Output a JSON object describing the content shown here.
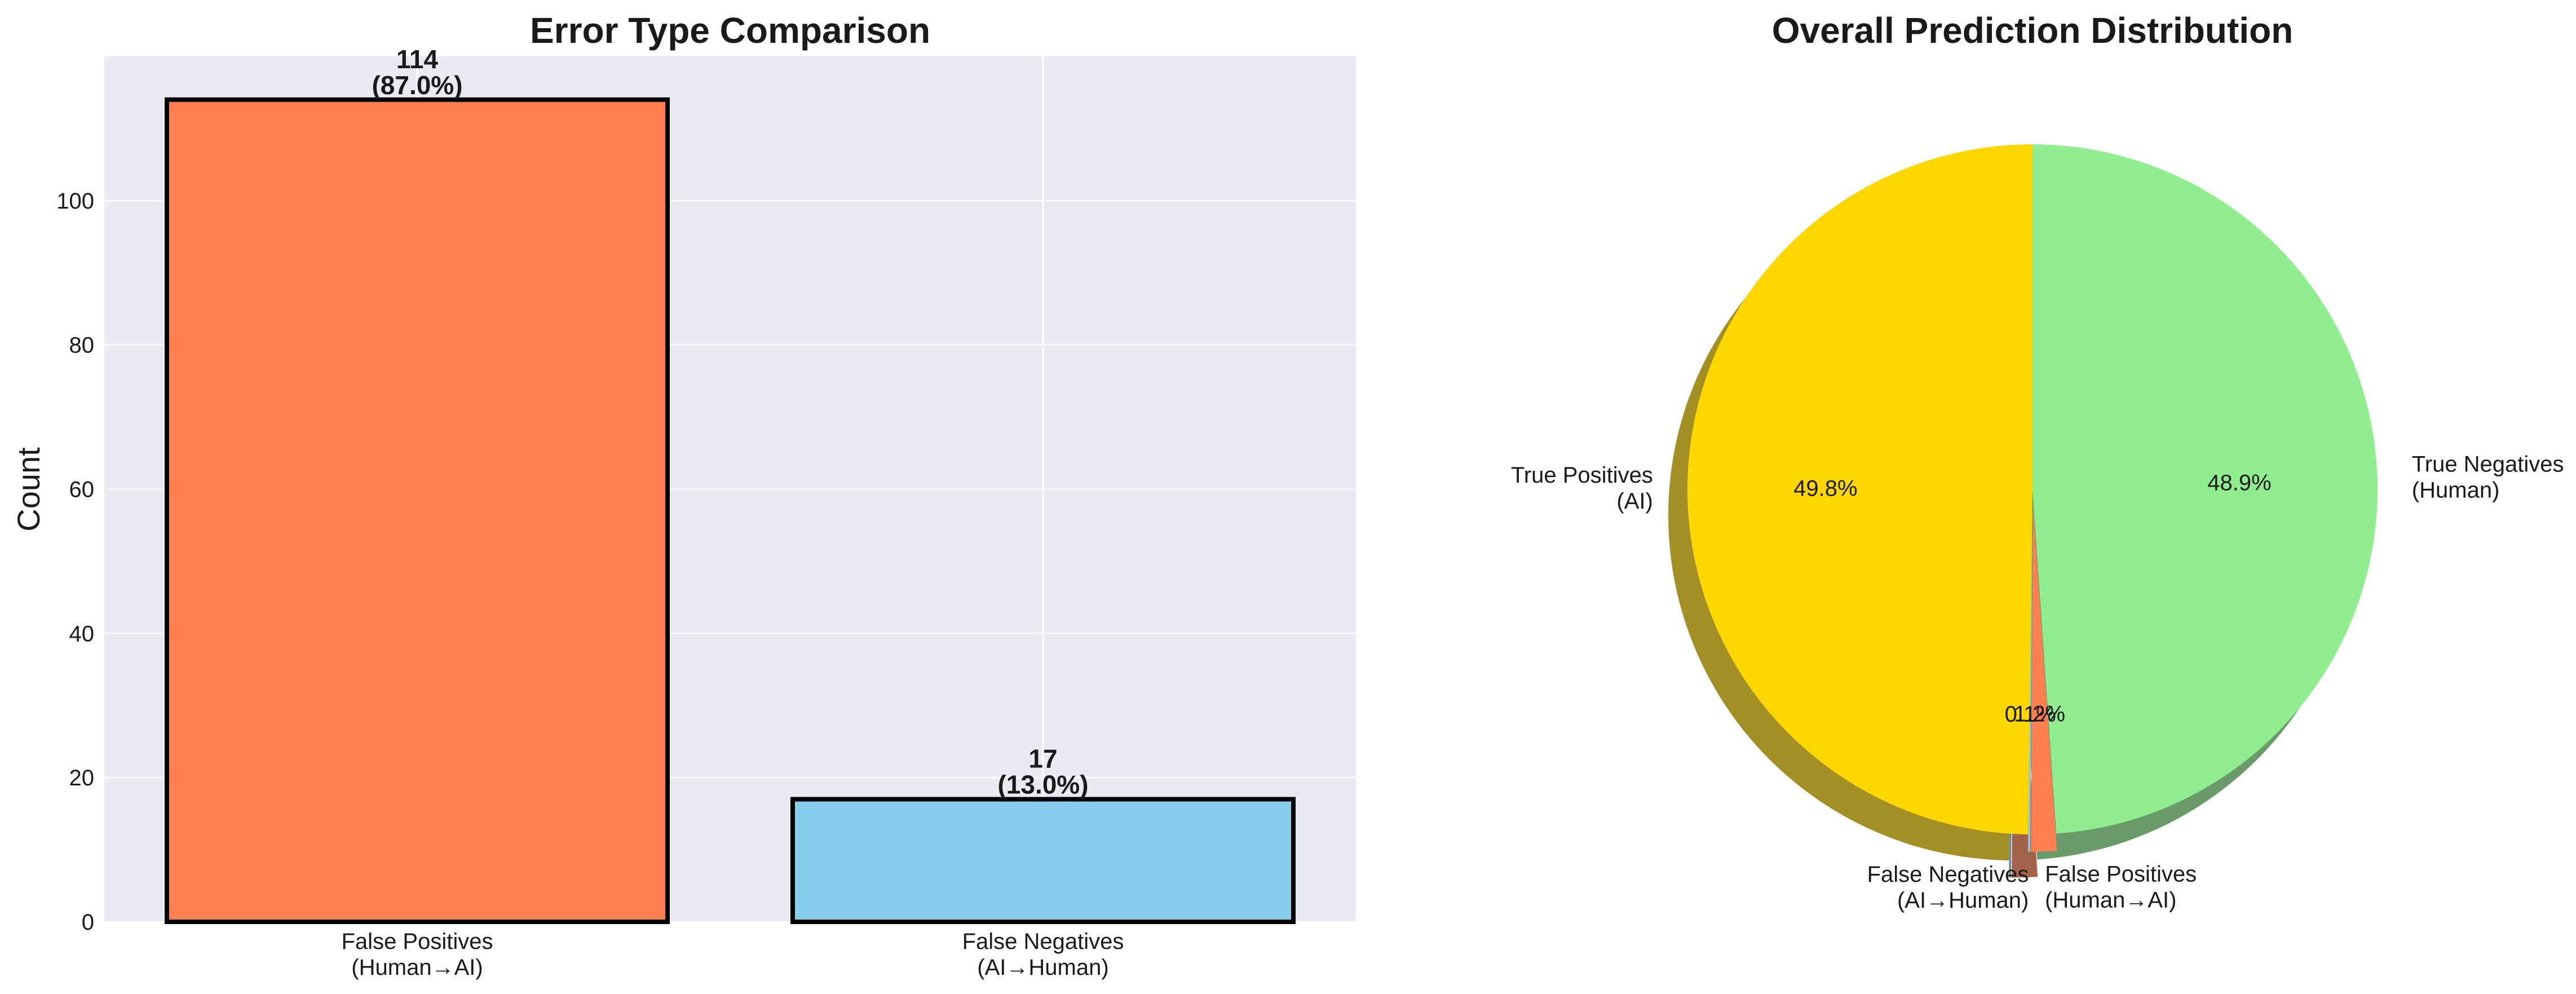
{
  "chart_data": [
    {
      "type": "bar",
      "title": "Error Type Comparison",
      "ylabel": "Count",
      "xlabel": "",
      "ylim": [
        0,
        120
      ],
      "yticks": [
        0,
        20,
        40,
        60,
        80,
        100
      ],
      "grid": true,
      "categories": [
        [
          "False Positives",
          "(Human→AI)"
        ],
        [
          "False Negatives",
          "(AI→Human)"
        ]
      ],
      "values": [
        114,
        17
      ],
      "value_labels": [
        [
          "114",
          "(87.0%)"
        ],
        [
          "17",
          "(13.0%)"
        ]
      ],
      "colors": [
        "#FF7F50",
        "#87CEEB"
      ],
      "edge_color": "#000000"
    },
    {
      "type": "pie",
      "title": "Overall Prediction Distribution",
      "shadow": true,
      "slices": [
        {
          "label": [
            "True Positives",
            "(AI)"
          ],
          "percent": 49.8,
          "pct_label": "49.8%",
          "color": "#FFD700",
          "explode": 0
        },
        {
          "label": [
            "False Negatives",
            "(AI→Human)"
          ],
          "percent": 0.1,
          "pct_label": "0.1%",
          "color": "#87CEEB",
          "explode": 0.05
        },
        {
          "label": [
            "False Positives",
            "(Human→AI)"
          ],
          "percent": 1.2,
          "pct_label": "1.2%",
          "color": "#FF7F50",
          "explode": 0.05
        },
        {
          "label": [
            "True Negatives",
            "(Human)"
          ],
          "percent": 48.9,
          "pct_label": "48.9%",
          "color": "#90EE90",
          "explode": 0
        }
      ]
    }
  ]
}
